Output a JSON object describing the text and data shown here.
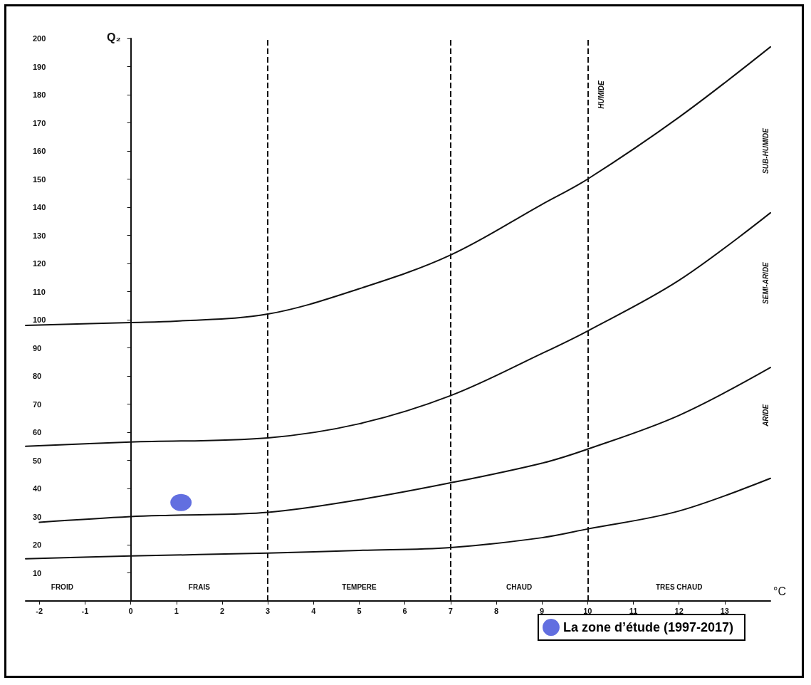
{
  "chart_data": {
    "type": "line",
    "xlabel": "°C",
    "ylabel": "Q₂",
    "xlim": [
      -2.3,
      14
    ],
    "ylim": [
      0,
      200
    ],
    "xticks": [
      -2,
      -1,
      0,
      1,
      2,
      3,
      4,
      5,
      6,
      7,
      8,
      9,
      10,
      11,
      12,
      13
    ],
    "yticks": [
      10,
      20,
      30,
      40,
      50,
      60,
      70,
      80,
      90,
      100,
      110,
      120,
      130,
      140,
      150,
      160,
      170,
      180,
      190,
      200
    ],
    "grid": false,
    "marker": "none",
    "line_style": "solid",
    "legend": "bottom right",
    "series": [
      {
        "color": "#111111",
        "x": [
          -2.3,
          0,
          1,
          3,
          5,
          7,
          9,
          10,
          12,
          14
        ],
        "values": [
          98,
          99,
          99.5,
          102,
          111,
          123,
          141,
          150,
          172,
          197
        ]
      },
      {
        "color": "#111111",
        "x": [
          -2.3,
          0,
          3,
          5,
          7,
          9,
          10,
          12,
          14
        ],
        "values": [
          55,
          56.5,
          58,
          63,
          73,
          88,
          96,
          114,
          138
        ]
      },
      {
        "color": "#111111",
        "x": [
          -2,
          0,
          1,
          3,
          5,
          7,
          9,
          10,
          12,
          14
        ],
        "values": [
          28,
          30,
          30.5,
          31.5,
          36,
          42,
          49,
          54,
          66,
          83
        ]
      },
      {
        "color": "#111111",
        "x": [
          -2.3,
          0,
          3,
          5,
          7,
          9,
          10,
          12,
          14
        ],
        "values": [
          15,
          16,
          17,
          18,
          19,
          22.5,
          25.6,
          32,
          43.6
        ]
      },
      {
        "type": "scatter",
        "marker": "circle",
        "name": "La zone d’étude (1997-2017)",
        "color": "#3b4bd8",
        "x": [
          1.1
        ],
        "values": [
          35
        ]
      }
    ],
    "ref_lines": [
      {
        "axis": "x",
        "value": 3,
        "line_style": "dashed",
        "color": "#111111"
      },
      {
        "axis": "x",
        "value": 7,
        "line_style": "dashed",
        "color": "#111111"
      },
      {
        "axis": "x",
        "value": 10,
        "line_style": "dashed",
        "color": "#111111"
      }
    ],
    "annotations": [
      "FROID",
      "FRAIS",
      "TEMPERE",
      "CHAUD",
      "TRES CHAUD",
      "HUMIDE",
      "SUB-HUMIDE",
      "SEMI-ARIDE",
      "ARIDE"
    ]
  }
}
